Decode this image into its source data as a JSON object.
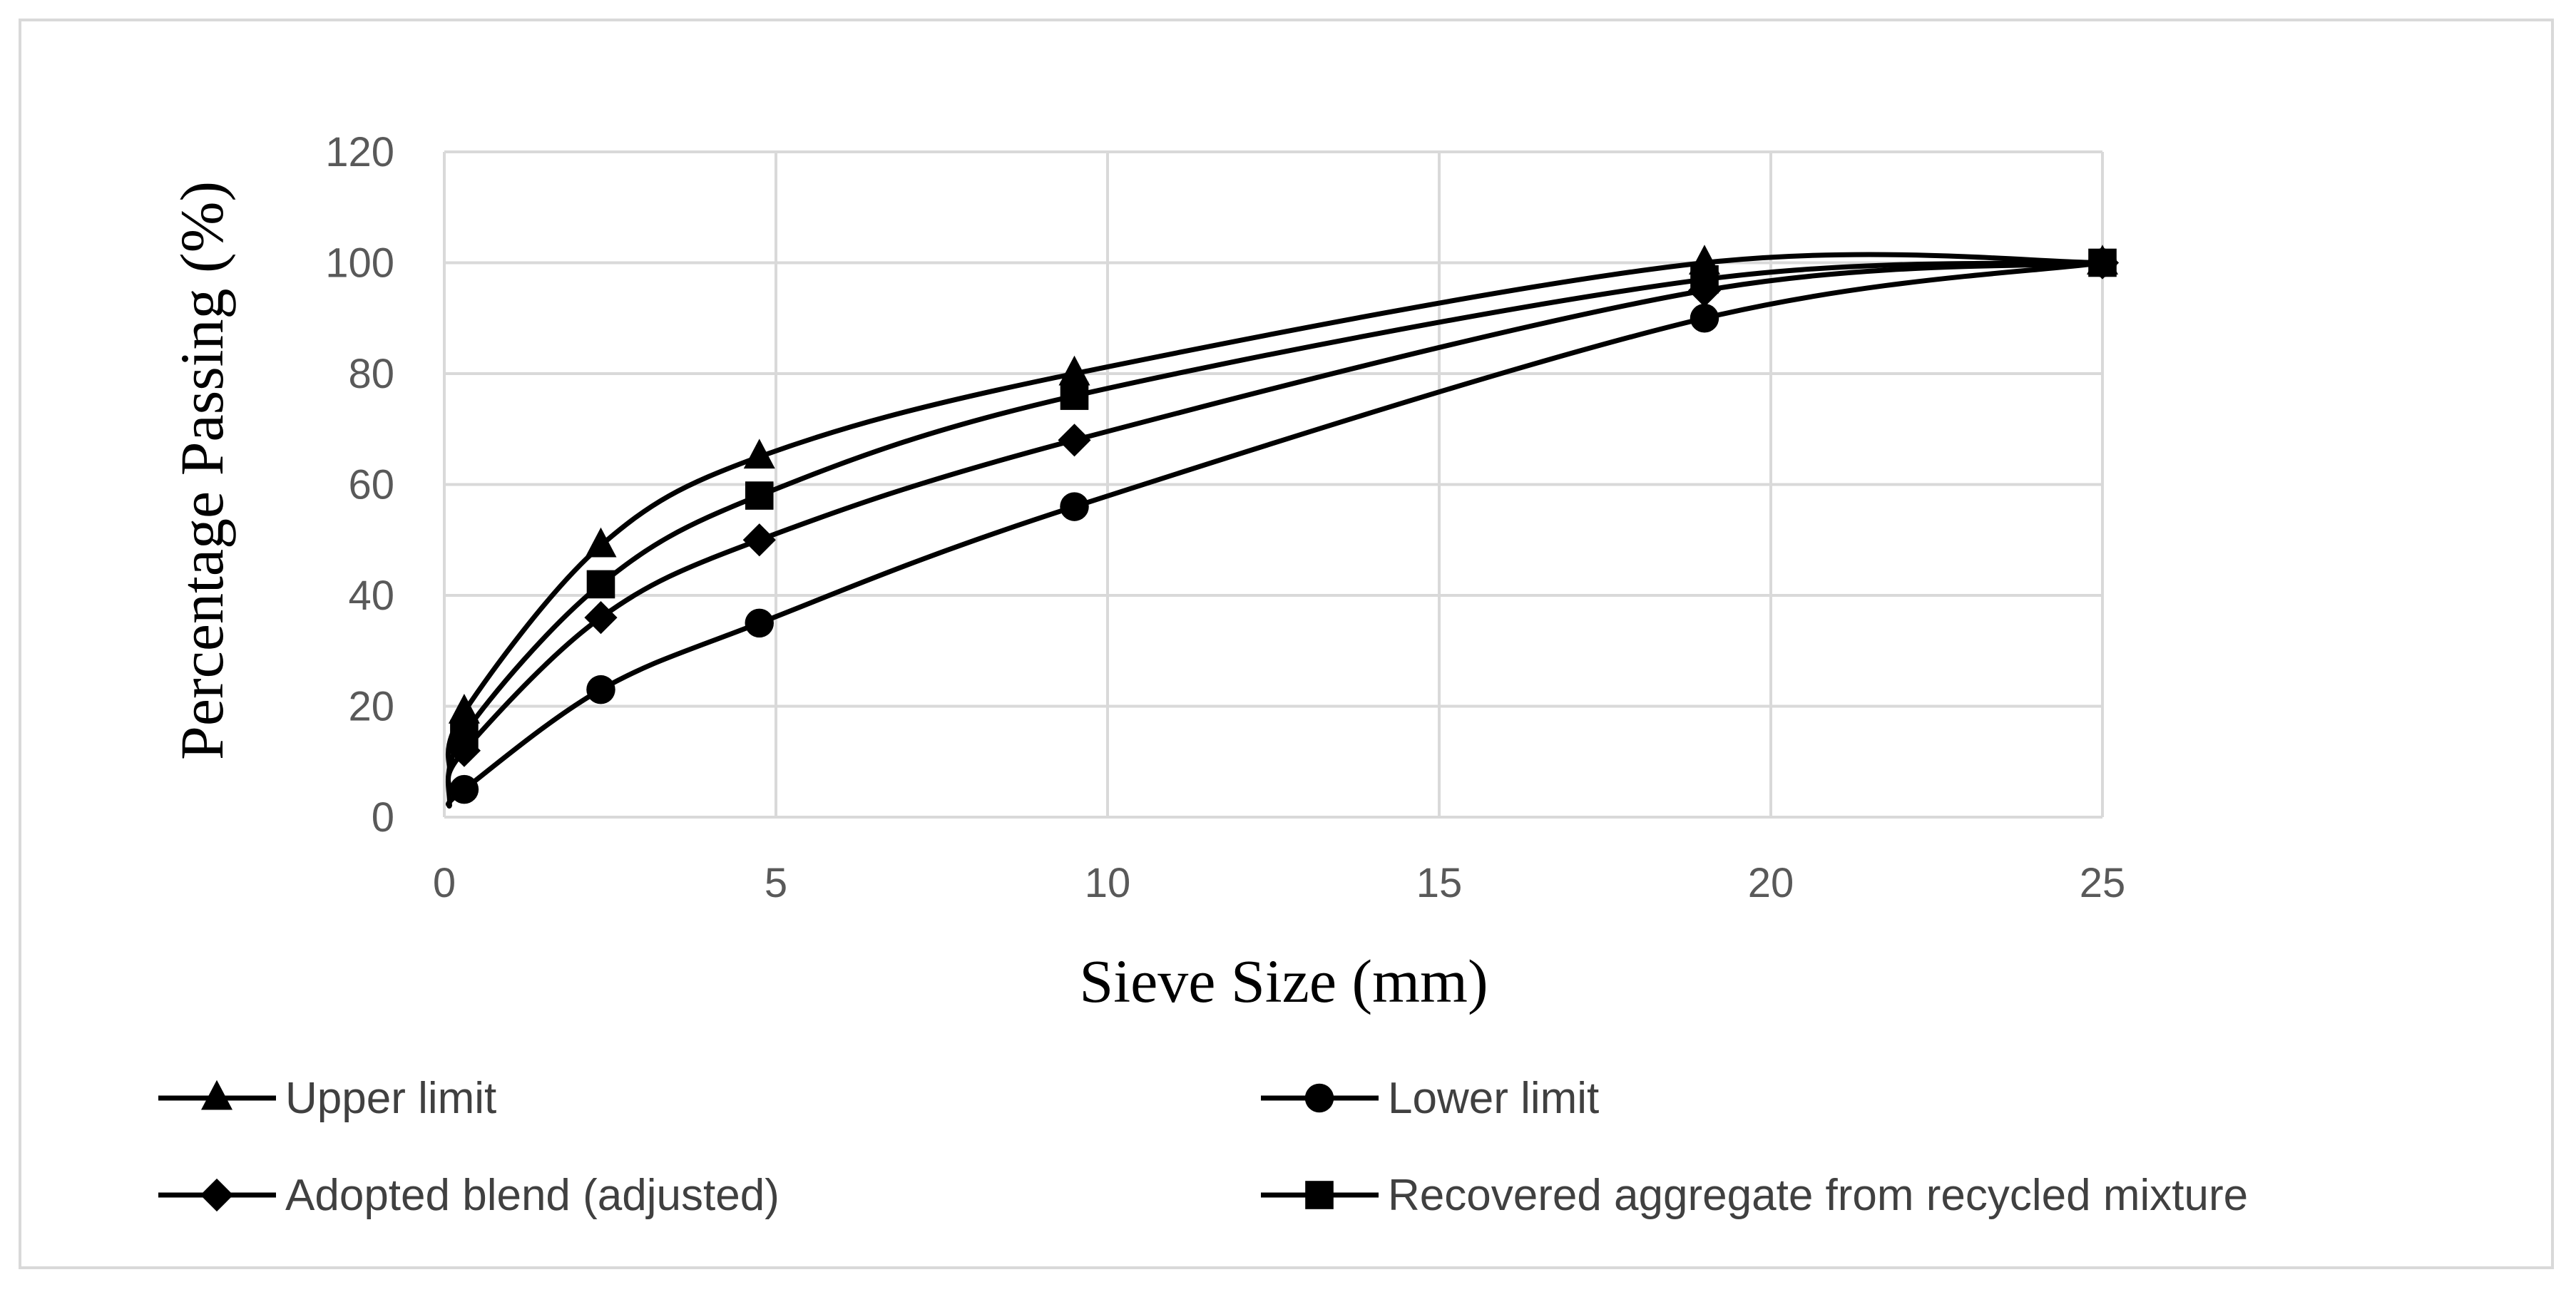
{
  "chart_data": {
    "type": "line",
    "title": "",
    "xlabel": "Sieve Size (mm)",
    "ylabel": "Percentage Passing (%)",
    "xlim": [
      0,
      25
    ],
    "ylim": [
      0,
      120
    ],
    "xticks": [
      0,
      5,
      10,
      15,
      20,
      25
    ],
    "yticks": [
      0,
      20,
      40,
      60,
      80,
      100,
      120
    ],
    "grid": true,
    "legend_position": "bottom",
    "line_color": "#000000",
    "grid_color": "#d9d9d9",
    "series": [
      {
        "name": "Upper limit",
        "marker": "triangle",
        "x": [
          0.075,
          0.3,
          2.36,
          4.75,
          9.5,
          19,
          25
        ],
        "y": [
          8,
          19,
          49,
          65,
          80,
          100,
          100
        ]
      },
      {
        "name": "Lower limit",
        "marker": "circle",
        "x": [
          0.075,
          0.3,
          2.36,
          4.75,
          9.5,
          19,
          25
        ],
        "y": [
          2,
          5,
          23,
          35,
          56,
          90,
          100
        ]
      },
      {
        "name": "Adopted blend (adjusted)",
        "marker": "diamond",
        "x": [
          0.075,
          0.3,
          2.36,
          4.75,
          9.5,
          19,
          25
        ],
        "y": [
          5,
          12,
          36,
          50,
          68,
          95,
          100
        ]
      },
      {
        "name": "Recovered aggregate from recycled mixture",
        "marker": "square",
        "x": [
          0.075,
          0.3,
          2.36,
          4.75,
          9.5,
          19,
          25
        ],
        "y": [
          2,
          15,
          42,
          58,
          76,
          97,
          100
        ]
      }
    ]
  }
}
